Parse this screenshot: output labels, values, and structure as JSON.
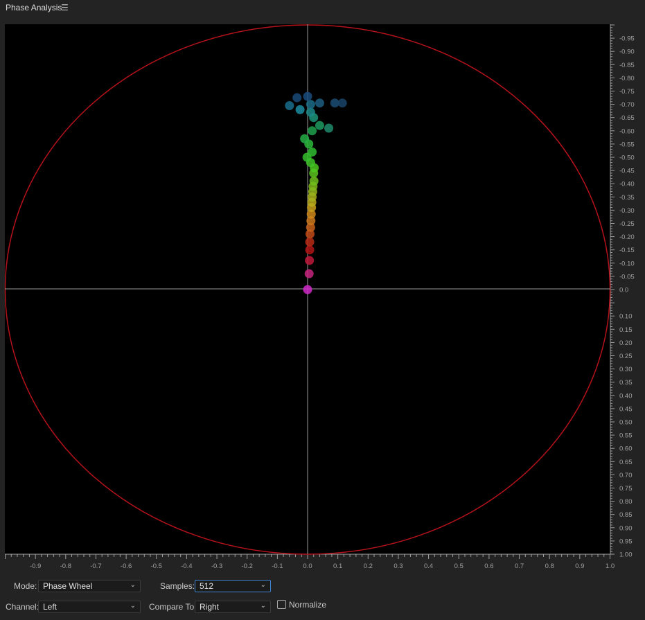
{
  "panel": {
    "title": "Phase Analysis",
    "menu_icon": "hamburger-menu-icon"
  },
  "colors": {
    "background": "#232323",
    "plot_background": "#000000",
    "circle": "#b5121b",
    "crosshair": "#9a9a9a",
    "ticks": "#a0a0a0",
    "focus": "#3f86d6"
  },
  "chart_data": {
    "type": "scatter",
    "x_ticks": [
      "-0.9",
      "-0.8",
      "-0.7",
      "-0.6",
      "-0.5",
      "-0.4",
      "-0.3",
      "-0.2",
      "-0.1",
      "0.0",
      "0.1",
      "0.2",
      "0.3",
      "0.4",
      "0.5",
      "0.6",
      "0.7",
      "0.8",
      "0.9",
      "1.0"
    ],
    "y_ticks": [
      "-0.95",
      "-0.90",
      "-0.85",
      "-0.80",
      "-0.75",
      "-0.70",
      "-0.65",
      "-0.60",
      "-0.55",
      "-0.50",
      "-0.45",
      "-0.40",
      "-0.35",
      "-0.30",
      "-0.25",
      "-0.20",
      "-0.15",
      "-0.10",
      "-0.05",
      "0.0",
      "0.10",
      "0.15",
      "0.20",
      "0.25",
      "0.30",
      "0.35",
      "0.40",
      "0.45",
      "0.50",
      "0.55",
      "0.60",
      "0.65",
      "0.70",
      "0.75",
      "0.80",
      "0.85",
      "0.90",
      "0.95",
      "1.00"
    ],
    "xlim": [
      -1.0,
      1.0
    ],
    "ylim": [
      -1.0,
      1.0
    ],
    "grid": false,
    "points": [
      {
        "x": 0.0,
        "y": 0.0,
        "color": "#d028c8"
      },
      {
        "x": 0.005,
        "y": -0.06,
        "color": "#c8247e"
      },
      {
        "x": 0.006,
        "y": -0.11,
        "color": "#c0183a"
      },
      {
        "x": 0.007,
        "y": -0.15,
        "color": "#b01414"
      },
      {
        "x": 0.007,
        "y": -0.18,
        "color": "#b82a14"
      },
      {
        "x": 0.008,
        "y": -0.21,
        "color": "#c04a18"
      },
      {
        "x": 0.01,
        "y": -0.235,
        "color": "#c8621a"
      },
      {
        "x": 0.011,
        "y": -0.26,
        "color": "#cc781c"
      },
      {
        "x": 0.012,
        "y": -0.285,
        "color": "#d08a1c"
      },
      {
        "x": 0.013,
        "y": -0.31,
        "color": "#c8a01c"
      },
      {
        "x": 0.014,
        "y": -0.33,
        "color": "#b8ac1c"
      },
      {
        "x": 0.015,
        "y": -0.35,
        "color": "#a8b01c"
      },
      {
        "x": 0.017,
        "y": -0.37,
        "color": "#98b41c"
      },
      {
        "x": 0.018,
        "y": -0.39,
        "color": "#80b81c"
      },
      {
        "x": 0.021,
        "y": -0.41,
        "color": "#6ec01c"
      },
      {
        "x": 0.02,
        "y": -0.44,
        "color": "#5cc41e"
      },
      {
        "x": 0.022,
        "y": -0.46,
        "color": "#4cc820"
      },
      {
        "x": 0.01,
        "y": -0.48,
        "color": "#3ec428"
      },
      {
        "x": -0.002,
        "y": -0.5,
        "color": "#34c02c"
      },
      {
        "x": 0.015,
        "y": -0.52,
        "color": "#30bc30"
      },
      {
        "x": 0.004,
        "y": -0.55,
        "color": "#2cb838"
      },
      {
        "x": -0.01,
        "y": -0.57,
        "color": "#24ae44"
      },
      {
        "x": 0.015,
        "y": -0.6,
        "color": "#20a04c"
      },
      {
        "x": 0.04,
        "y": -0.62,
        "color": "#1e9a60"
      },
      {
        "x": 0.07,
        "y": -0.61,
        "color": "#1e8c6c"
      },
      {
        "x": 0.02,
        "y": -0.65,
        "color": "#1c9478"
      },
      {
        "x": 0.01,
        "y": -0.67,
        "color": "#1c8a88"
      },
      {
        "x": -0.025,
        "y": -0.68,
        "color": "#1c8ca0"
      },
      {
        "x": -0.06,
        "y": -0.695,
        "color": "#1a6e8c"
      },
      {
        "x": 0.01,
        "y": -0.7,
        "color": "#1c6c88"
      },
      {
        "x": 0.04,
        "y": -0.705,
        "color": "#1c5e80"
      },
      {
        "x": 0.09,
        "y": -0.705,
        "color": "#1c4e74"
      },
      {
        "x": 0.115,
        "y": -0.705,
        "color": "#1a4468"
      },
      {
        "x": -0.035,
        "y": -0.725,
        "color": "#1a4a78"
      },
      {
        "x": 0.0,
        "y": -0.73,
        "color": "#1a4c7c"
      }
    ]
  },
  "controls": {
    "mode_label": "Mode:",
    "mode_value": "Phase Wheel",
    "samples_label": "Samples:",
    "samples_value": "512",
    "channel_label": "Channel:",
    "channel_value": "Left",
    "compare_label": "Compare To:",
    "compare_value": "Right",
    "normalize_label": "Normalize",
    "normalize_checked": false,
    "dropdown_icon": "chevron-down-icon"
  }
}
